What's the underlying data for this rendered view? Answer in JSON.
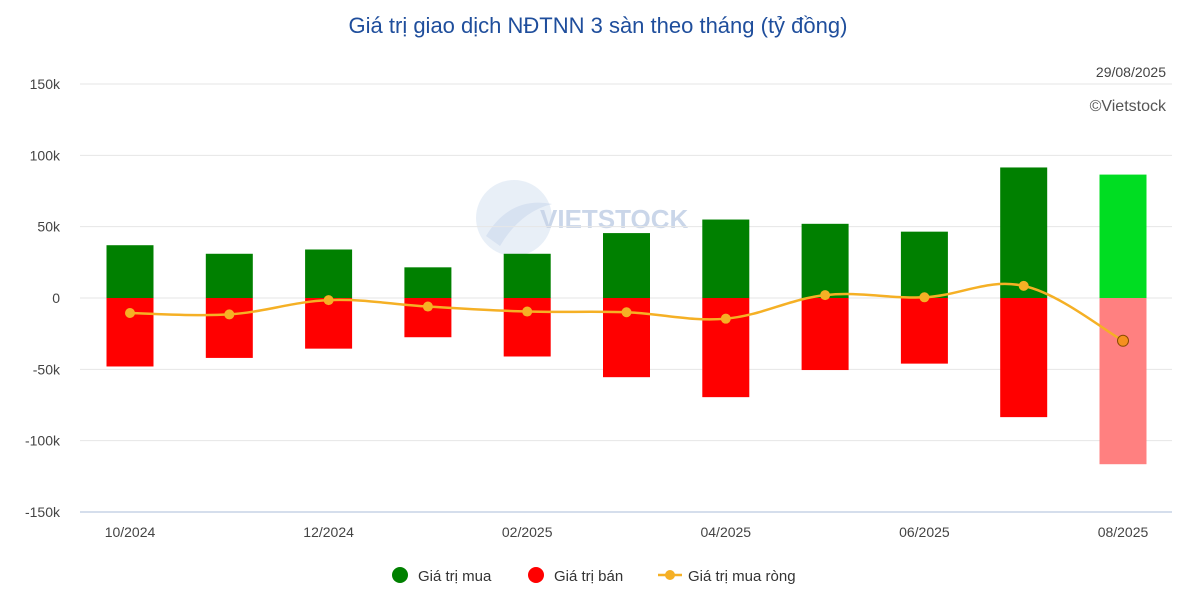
{
  "chart_data": {
    "type": "bar",
    "title": "Giá trị giao dịch NĐTNN 3 sàn theo tháng (tỷ đồng)",
    "date_note": "29/08/2025",
    "credit": "©Vietstock",
    "categories": [
      "10/2024",
      "11/2024",
      "12/2024",
      "01/2025",
      "02/2025",
      "03/2025",
      "04/2025",
      "05/2025",
      "06/2025",
      "07/2025",
      "08/2025"
    ],
    "x_tick_labels": [
      "10/2024",
      "",
      "12/2024",
      "",
      "02/2025",
      "",
      "04/2025",
      "",
      "06/2025",
      "",
      "08/2025"
    ],
    "ylim": [
      -150000,
      150000
    ],
    "y_ticks": [
      150000,
      100000,
      50000,
      0,
      -50000,
      -100000,
      -150000
    ],
    "y_tick_labels": [
      "150k",
      "100k",
      "50k",
      "0",
      "-50k",
      "-100k",
      "-150k"
    ],
    "grid": true,
    "legend_position": "bottom",
    "series": [
      {
        "name": "Giá trị mua",
        "type": "bar",
        "color": "#008000",
        "highlight_color": "#00dd22",
        "values": [
          37000,
          31000,
          34000,
          21500,
          31000,
          45500,
          55000,
          52000,
          46500,
          91500,
          86500
        ]
      },
      {
        "name": "Giá trị bán",
        "type": "bar",
        "color": "#ff0000",
        "highlight_color": "#ff8080",
        "values": [
          -48000,
          -42000,
          -35500,
          -27500,
          -41000,
          -55500,
          -69500,
          -50500,
          -46000,
          -83500,
          -116500
        ]
      },
      {
        "name": "Giá trị mua ròng",
        "type": "line",
        "color": "#f5b025",
        "values": [
          -10500,
          -11500,
          -1500,
          -6000,
          -9500,
          -10000,
          -14500,
          2000,
          500,
          8500,
          -30000
        ]
      }
    ],
    "highlight_last": true,
    "watermark": "VIETSTOCK"
  }
}
